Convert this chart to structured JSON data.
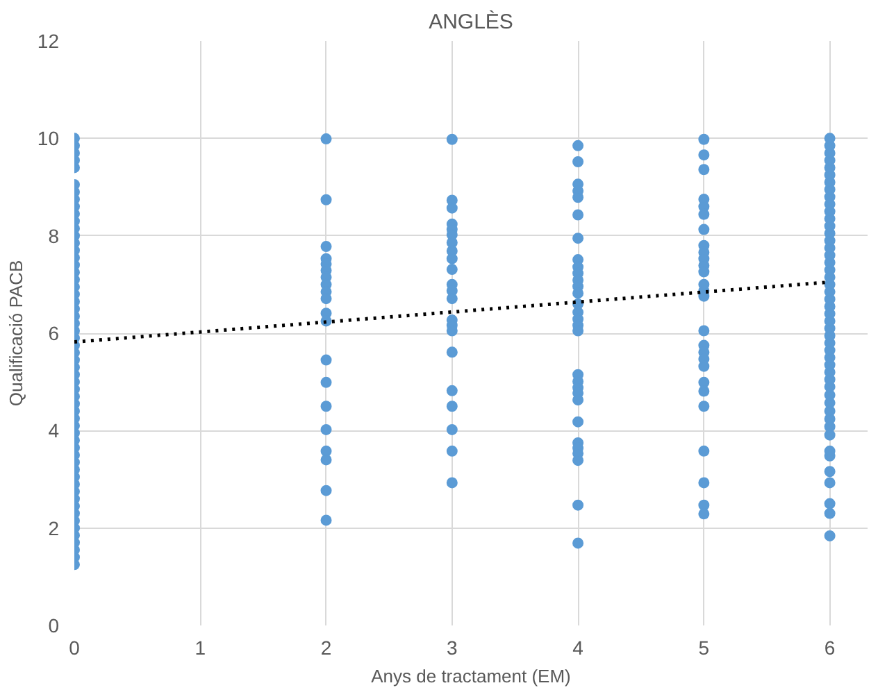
{
  "chart_data": {
    "type": "scatter",
    "title": "ANGLÈS",
    "xlabel": "Anys de tractament (EM)",
    "ylabel": "Qualificació PACB",
    "xlim": [
      0,
      6.3
    ],
    "xticks": [
      0,
      1,
      2,
      3,
      4,
      5,
      6
    ],
    "ylim": [
      0,
      12
    ],
    "yticks": [
      0,
      2,
      4,
      6,
      8,
      10,
      12
    ],
    "grid": true,
    "marker": "circle",
    "series": [
      {
        "color": "#5b9bd5",
        "x": [
          0,
          0,
          0,
          0,
          0,
          0,
          0,
          0,
          0,
          0,
          0,
          0,
          0,
          0,
          0,
          0,
          0,
          0,
          0,
          0,
          0,
          0,
          0,
          0,
          0,
          0,
          0,
          0,
          0,
          0,
          0,
          0,
          0,
          0,
          0,
          0,
          0,
          0,
          0,
          0,
          0,
          0,
          0,
          0,
          0,
          0,
          0,
          0,
          0,
          0,
          0,
          0,
          0,
          0,
          0,
          0,
          0,
          0
        ],
        "values": [
          1.25,
          1.4,
          1.55,
          1.7,
          1.85,
          2.0,
          2.15,
          2.3,
          2.45,
          2.6,
          2.75,
          2.9,
          3.05,
          3.2,
          3.35,
          3.5,
          3.65,
          3.8,
          3.95,
          4.1,
          4.25,
          4.4,
          4.55,
          4.7,
          4.85,
          5.0,
          5.15,
          5.3,
          5.45,
          5.6,
          5.75,
          5.9,
          6.05,
          6.2,
          6.35,
          6.5,
          6.65,
          6.8,
          6.95,
          7.1,
          7.25,
          7.4,
          7.55,
          7.7,
          7.85,
          8.0,
          8.15,
          8.3,
          8.45,
          8.6,
          8.75,
          8.9,
          9.05,
          9.4,
          9.55,
          9.7,
          9.85,
          10.0
        ]
      },
      {
        "color": "#5b9bd5",
        "x": [
          2,
          2,
          2,
          2,
          2,
          2,
          2,
          2,
          2,
          2,
          2,
          2,
          2,
          2,
          2,
          2,
          2,
          2,
          2,
          2
        ],
        "values": [
          9.99,
          8.74,
          7.78,
          7.53,
          7.42,
          7.29,
          7.15,
          7.0,
          6.85,
          6.71,
          6.41,
          6.25,
          5.45,
          4.99,
          4.5,
          4.02,
          3.58,
          3.4,
          2.77,
          2.16
        ]
      },
      {
        "color": "#5b9bd5",
        "x": [
          3,
          3,
          3,
          3,
          3,
          3,
          3,
          3,
          3,
          3,
          3,
          3,
          3,
          3,
          3,
          3,
          3,
          3,
          3,
          3,
          3,
          3
        ],
        "values": [
          9.98,
          8.73,
          8.57,
          8.24,
          8.13,
          8.02,
          7.86,
          7.69,
          7.53,
          7.31,
          7.0,
          6.87,
          6.71,
          6.27,
          6.16,
          6.05,
          5.61,
          4.82,
          4.5,
          4.02,
          3.58,
          2.93
        ]
      },
      {
        "color": "#5b9bd5",
        "x": [
          4,
          4,
          4,
          4,
          4,
          4,
          4,
          4,
          4,
          4,
          4,
          4,
          4,
          4,
          4,
          4,
          4,
          4,
          4,
          4,
          4,
          4,
          4,
          4,
          4,
          4,
          4,
          4,
          4,
          4
        ],
        "values": [
          9.85,
          9.52,
          9.06,
          8.92,
          8.79,
          8.43,
          7.95,
          7.51,
          7.36,
          7.23,
          7.09,
          6.96,
          6.82,
          6.6,
          6.43,
          6.29,
          6.16,
          6.05,
          5.15,
          5.01,
          4.88,
          4.77,
          4.63,
          4.18,
          3.75,
          3.64,
          3.53,
          3.39,
          2.47,
          1.69
        ]
      },
      {
        "color": "#5b9bd5",
        "x": [
          5,
          5,
          5,
          5,
          5,
          5,
          5,
          5,
          5,
          5,
          5,
          5,
          5,
          5,
          5,
          5,
          5,
          5,
          5,
          5,
          5,
          5,
          5,
          5,
          5,
          5,
          5
        ],
        "values": [
          9.98,
          9.66,
          9.36,
          8.75,
          8.6,
          8.44,
          8.13,
          7.8,
          7.66,
          7.53,
          7.39,
          7.26,
          7.0,
          6.87,
          6.76,
          6.05,
          5.75,
          5.61,
          5.47,
          5.32,
          4.99,
          4.81,
          4.5,
          3.58,
          2.93,
          2.47,
          2.29
        ]
      },
      {
        "color": "#5b9bd5",
        "x": [
          6,
          6,
          6,
          6,
          6,
          6,
          6,
          6,
          6,
          6,
          6,
          6,
          6,
          6,
          6,
          6,
          6,
          6,
          6,
          6,
          6,
          6,
          6,
          6,
          6,
          6,
          6,
          6,
          6,
          6,
          6,
          6,
          6,
          6,
          6,
          6,
          6,
          6,
          6,
          6,
          6,
          6,
          6,
          6,
          6,
          6,
          6,
          6
        ],
        "values": [
          1.84,
          2.3,
          2.5,
          2.93,
          3.16,
          3.48,
          3.58,
          3.91,
          4.08,
          4.24,
          4.4,
          4.57,
          4.73,
          4.9,
          5.05,
          5.2,
          5.35,
          5.5,
          5.65,
          5.8,
          5.95,
          6.1,
          6.25,
          6.4,
          6.55,
          6.7,
          6.85,
          7.0,
          7.15,
          7.3,
          7.45,
          7.6,
          7.75,
          7.9,
          8.05,
          8.2,
          8.35,
          8.5,
          8.65,
          8.8,
          8.95,
          9.1,
          9.25,
          9.4,
          9.55,
          9.7,
          9.85,
          10.0
        ]
      },
      {
        "type": "line",
        "color": "#000000",
        "line_style": "dotted",
        "marker": "none",
        "x": [
          0,
          6
        ],
        "values": [
          5.82,
          7.05
        ]
      }
    ]
  }
}
